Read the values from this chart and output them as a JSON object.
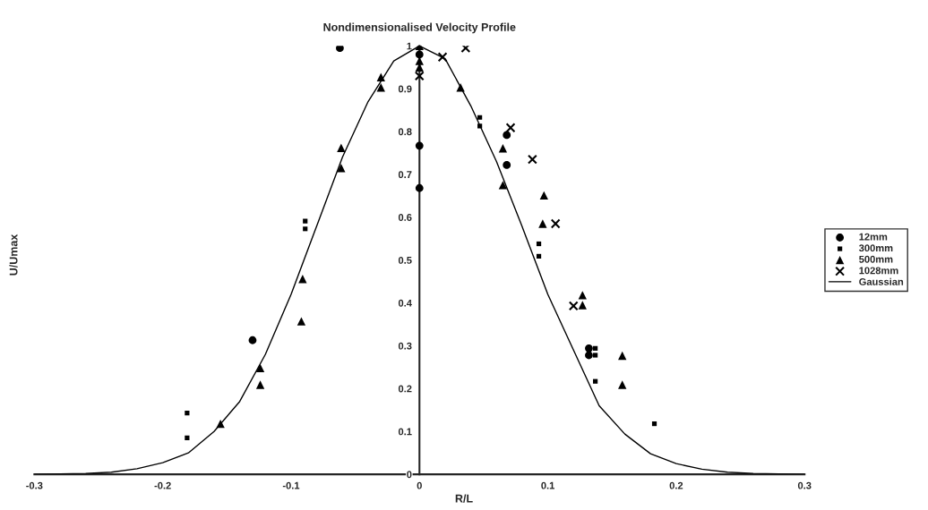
{
  "chart_data": {
    "type": "scatter",
    "title": "Nondimensionalised Velocity Profile",
    "xlabel": "R/L",
    "ylabel": "U/Umax",
    "xlim": [
      -0.3,
      0.3
    ],
    "ylim": [
      0,
      1
    ],
    "xticks": [
      -0.3,
      -0.2,
      -0.1,
      0,
      0.1,
      0.2,
      0.3
    ],
    "yticks": [
      0,
      0.1,
      0.2,
      0.3,
      0.4,
      0.5,
      0.6,
      0.7,
      0.8,
      0.9,
      1
    ],
    "grid": false,
    "legend": "right",
    "series": [
      {
        "name": "12mm",
        "color": "#000000",
        "marker": "circle",
        "x": [
          -0.062,
          -0.13,
          0,
          0,
          0,
          0.068,
          0.068,
          0.132,
          0.132
        ],
        "values": [
          0.995,
          0.313,
          0.98,
          0.767,
          0.668,
          0.792,
          0.722,
          0.294,
          0.278
        ]
      },
      {
        "name": "300mm",
        "color": "#000000",
        "marker": "square",
        "x": [
          -0.089,
          -0.089,
          -0.181,
          -0.181,
          0.047,
          0.047,
          0.093,
          0.093,
          0.137,
          0.137,
          0.137,
          0.183
        ],
        "values": [
          0.591,
          0.573,
          0.143,
          0.085,
          0.833,
          0.813,
          0.538,
          0.509,
          0.294,
          0.278,
          0.217,
          0.118
        ]
      },
      {
        "name": "500mm",
        "color": "#000000",
        "marker": "triangle",
        "x": [
          -0.03,
          -0.03,
          -0.061,
          -0.061,
          -0.091,
          -0.092,
          -0.124,
          -0.124,
          -0.155,
          0,
          0,
          0,
          0.032,
          0.065,
          0.065,
          0.097,
          0.096,
          0.127,
          0.127,
          0.158,
          0.158
        ],
        "values": [
          0.927,
          0.903,
          0.762,
          0.715,
          0.456,
          0.357,
          0.248,
          0.209,
          0.118,
          1.0,
          0.965,
          0.95,
          0.903,
          0.761,
          0.675,
          0.651,
          0.585,
          0.418,
          0.395,
          0.277,
          0.209
        ]
      },
      {
        "name": "1028mm",
        "color": "#000000",
        "marker": "cross",
        "x": [
          0,
          0.018,
          0.036,
          0.071,
          0.088,
          0.106,
          0.12
        ],
        "values": [
          0.93,
          0.974,
          0.995,
          0.809,
          0.735,
          0.585,
          0.393
        ]
      },
      {
        "name": "Gaussian",
        "type": "line",
        "color": "#000000",
        "marker": "none",
        "line_style": "solid",
        "x": [
          -0.3,
          -0.26,
          -0.24,
          -0.22,
          -0.2,
          -0.18,
          -0.16,
          -0.14,
          -0.12,
          -0.1,
          -0.08,
          -0.06,
          -0.04,
          -0.02,
          0,
          0.02,
          0.04,
          0.06,
          0.08,
          0.1,
          0.12,
          0.14,
          0.16,
          0.18,
          0.2,
          0.22,
          0.24,
          0.26,
          0.3
        ],
        "values": [
          0,
          0.002,
          0.005,
          0.013,
          0.027,
          0.05,
          0.1,
          0.17,
          0.28,
          0.42,
          0.58,
          0.74,
          0.87,
          0.965,
          1,
          0.97,
          0.86,
          0.73,
          0.578,
          0.42,
          0.29,
          0.16,
          0.094,
          0.048,
          0.025,
          0.012,
          0.005,
          0.002,
          0
        ]
      }
    ]
  }
}
